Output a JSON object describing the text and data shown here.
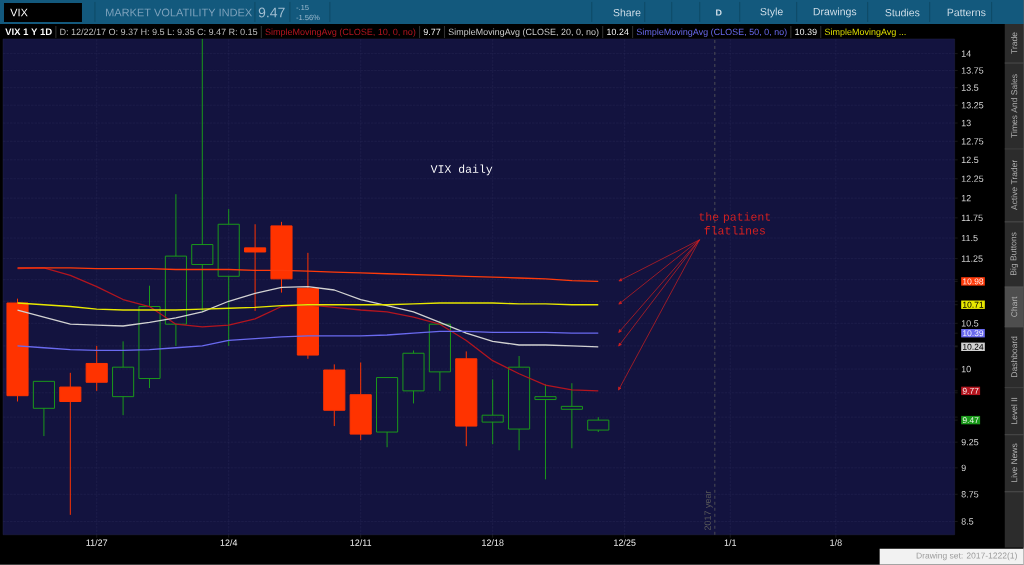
{
  "chart_data": {
    "type": "candlestick",
    "title": "VIX daily",
    "subtitle": "VIX 1 Y 1D",
    "categories": [
      null,
      null,
      null,
      "11/27",
      null,
      null,
      null,
      null,
      "12/4",
      null,
      null,
      null,
      null,
      "12/11",
      null,
      null,
      null,
      null,
      "12/18",
      null,
      null,
      null,
      null,
      "12/25",
      null,
      null,
      null,
      "1/1",
      null,
      null,
      null,
      "1/8",
      null,
      null,
      null,
      null
    ],
    "series": [
      {
        "ohlc": [
          [
            10.73,
            10.78,
            9.66,
            9.72
          ],
          [
            9.59,
            9.87,
            9.31,
            9.87
          ],
          [
            9.81,
            9.96,
            8.56,
            9.66
          ],
          [
            10.06,
            10.25,
            9.77,
            9.86
          ],
          [
            9.71,
            10.3,
            9.52,
            10.02
          ],
          [
            9.9,
            10.93,
            9.8,
            10.69
          ],
          [
            10.49,
            12.05,
            10.25,
            11.28
          ],
          [
            11.18,
            14.22,
            10.63,
            11.42
          ],
          [
            11.04,
            11.86,
            10.25,
            11.67
          ],
          [
            11.38,
            11.67,
            10.64,
            11.33
          ],
          [
            11.65,
            11.7,
            10.85,
            11.01
          ],
          [
            10.9,
            11.32,
            10.11,
            10.15
          ],
          [
            9.99,
            10.05,
            9.41,
            9.57
          ],
          [
            9.73,
            10.07,
            9.27,
            9.33
          ],
          [
            9.35,
            9.91,
            9.2,
            9.91
          ],
          [
            9.77,
            10.2,
            9.64,
            10.17
          ],
          [
            9.97,
            10.53,
            9.77,
            10.49
          ],
          [
            10.11,
            10.19,
            9.21,
            9.41
          ],
          [
            9.45,
            9.89,
            9.23,
            9.52
          ],
          [
            9.38,
            10.14,
            9.17,
            10.02
          ],
          [
            9.68,
            9.84,
            8.89,
            9.71
          ],
          [
            9.58,
            9.85,
            9.19,
            9.61
          ],
          [
            9.37,
            9.5,
            9.35,
            9.47
          ],
          null,
          null,
          null,
          null,
          null,
          null,
          null,
          null,
          null,
          null,
          null,
          null,
          null
        ],
        "colors": [
          "#ff3300",
          "#1a9a1a",
          "#ff3300",
          "#ff3300",
          "#1a9a1a",
          "#1a9a1a",
          "#1a9a1a",
          "#1a9a1a",
          "#1a9a1a",
          "#ff3300",
          "#ff3300",
          "#ff3300",
          "#ff3300",
          "#ff3300",
          "#1a9a1a",
          "#1a9a1a",
          "#1a9a1a",
          "#ff3300",
          "#1a9a1a",
          "#1a9a1a",
          "#1a9a1a",
          "#1a9a1a",
          "#1a9a1a",
          null,
          null,
          null,
          null,
          null,
          null,
          null,
          null,
          null,
          null,
          null,
          null,
          null
        ]
      },
      {
        "name": "SimpleMovingAvg (CLOSE, 10, 0, no)",
        "type": "line",
        "color": "#b3151f",
        "values": [
          11.13,
          11.14,
          11.05,
          10.92,
          10.77,
          10.69,
          10.49,
          10.46,
          10.48,
          10.55,
          10.69,
          10.71,
          10.68,
          10.65,
          10.63,
          10.57,
          10.49,
          10.31,
          10.09,
          9.95,
          9.83,
          9.78,
          9.77,
          null,
          null,
          null,
          null,
          null,
          null,
          null,
          null,
          null,
          null,
          null,
          null,
          null
        ]
      },
      {
        "name": "SimpleMovingAvg (CLOSE, 20, 0, no)",
        "type": "line",
        "color": "#d2d2d2",
        "values": [
          10.65,
          10.57,
          10.49,
          10.48,
          10.47,
          10.51,
          10.56,
          10.63,
          10.75,
          10.84,
          10.91,
          10.92,
          10.88,
          10.77,
          10.7,
          10.63,
          10.51,
          10.39,
          10.3,
          10.26,
          10.26,
          10.25,
          10.24,
          null,
          null,
          null,
          null,
          null,
          null,
          null,
          null,
          null,
          null,
          null,
          null,
          null
        ]
      },
      {
        "name": "SimpleMovingAvg (CLOSE, 50, 0, no)",
        "type": "line",
        "color": "#6a6af0",
        "values": [
          10.25,
          10.23,
          10.21,
          10.2,
          10.2,
          10.21,
          10.23,
          10.25,
          10.31,
          10.33,
          10.35,
          10.36,
          10.36,
          10.36,
          10.37,
          10.39,
          10.41,
          10.41,
          10.4,
          10.4,
          10.4,
          10.39,
          10.39,
          null,
          null,
          null,
          null,
          null,
          null,
          null,
          null,
          null,
          null,
          null,
          null,
          null
        ]
      },
      {
        "name": "SimpleMovingAvg ...",
        "type": "line",
        "color": "#e8e800",
        "values": [
          10.73,
          10.71,
          10.69,
          10.66,
          10.65,
          10.65,
          10.65,
          10.66,
          10.67,
          10.68,
          10.7,
          10.71,
          10.71,
          10.71,
          10.71,
          10.72,
          10.73,
          10.73,
          10.73,
          10.72,
          10.72,
          10.71,
          10.71,
          null,
          null,
          null,
          null,
          null,
          null,
          null,
          null,
          null,
          null,
          null,
          null,
          null
        ]
      },
      {
        "type": "line",
        "color": "#ff3a0a",
        "values": [
          11.14,
          11.14,
          11.14,
          11.13,
          11.13,
          11.13,
          11.12,
          11.12,
          11.12,
          11.11,
          11.11,
          11.1,
          11.09,
          11.08,
          11.07,
          11.06,
          11.05,
          11.04,
          11.03,
          11.02,
          11.01,
          10.99,
          10.98,
          null,
          null,
          null,
          null,
          null,
          null,
          null,
          null,
          null,
          null,
          null,
          null,
          null
        ]
      }
    ],
    "ylim": [
      8.38,
      14.22
    ],
    "yticks": [
      8.5,
      8.75,
      9,
      9.25,
      9.47,
      {
        "value": 9.5,
        "label": null
      },
      {
        "value": 9.75,
        "label": null
      },
      9.77,
      10,
      10.24,
      {
        "value": 10.25,
        "label": null
      },
      10.39,
      10.5,
      10.71,
      {
        "value": 10.75,
        "label": null
      },
      10.98,
      {
        "value": 11,
        "label": null
      },
      11.25,
      11.5,
      11.75,
      12,
      12.25,
      12.5,
      12.75,
      13,
      13.25,
      13.5,
      13.75,
      14
    ],
    "log": true,
    "grid": true,
    "legend": "top",
    "annotations": [
      "the patient flatlines",
      "D: 12/22/17 O: 9.37 H: 9.5 L: 9.35 C: 9.47 R: 0.15",
      "VIX",
      "MARKET VOLATILITY INDEX",
      "9.47",
      "-.15",
      "-1.56%",
      "Share",
      "D",
      "Style",
      "Drawings",
      "Studies",
      "Patterns",
      "Trade",
      "Times And Sales",
      "Active Trader",
      "Big Buttons",
      "Chart",
      "Dashboard",
      "Level II",
      "Live News",
      "Drawing set: 2017-1222(1)",
      "9.77",
      "10.24",
      "10.39",
      "2017 year"
    ]
  }
}
